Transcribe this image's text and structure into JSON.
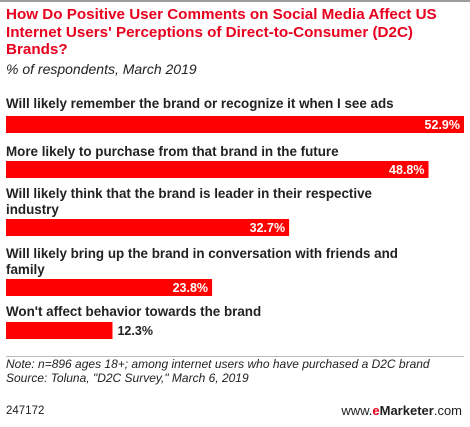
{
  "title": "How Do Positive User Comments on Social Media Affect US Internet Users' Perceptions of Direct-to-Consumer (D2C) Brands?",
  "subtitle": "% of respondents, March 2019",
  "chart_data": {
    "type": "bar",
    "orientation": "horizontal",
    "categories": [
      "Will likely remember the brand or recognize it when I see ads",
      "More likely to purchase from that brand in the future",
      "Will likely think that the brand is leader in their respective industry",
      "Will likely bring up the brand in conversation with friends and family",
      "Won't affect behavior towards the brand"
    ],
    "category_lines": [
      [
        "Will likely remember the brand or recognize it when I see ads"
      ],
      [
        "More likely to purchase from that brand in the future"
      ],
      [
        "Will likely think that the brand is leader in their respective",
        "industry"
      ],
      [
        "Will likely bring up the brand in conversation with friends and",
        "family"
      ],
      [
        "Won't affect behavior towards the brand"
      ]
    ],
    "values": [
      52.9,
      48.8,
      32.7,
      23.8,
      12.3
    ],
    "value_labels": [
      "52.9%",
      "48.8%",
      "32.7%",
      "23.8%",
      "12.3%"
    ],
    "xlim": [
      0,
      52.9
    ],
    "bar_color": "#ff0000",
    "grid": false,
    "legend": "none"
  },
  "footer": {
    "note": "Note: n=896 ages 18+; among internet users who have purchased a D2C brand",
    "source": "Source: Toluna, \"D2C Survey,\" March 6, 2019",
    "chart_id": "247172",
    "brand_e": "e",
    "brand_rest": "Marketer",
    "brand_suffix": ".com",
    "brand_prefix": "www."
  }
}
